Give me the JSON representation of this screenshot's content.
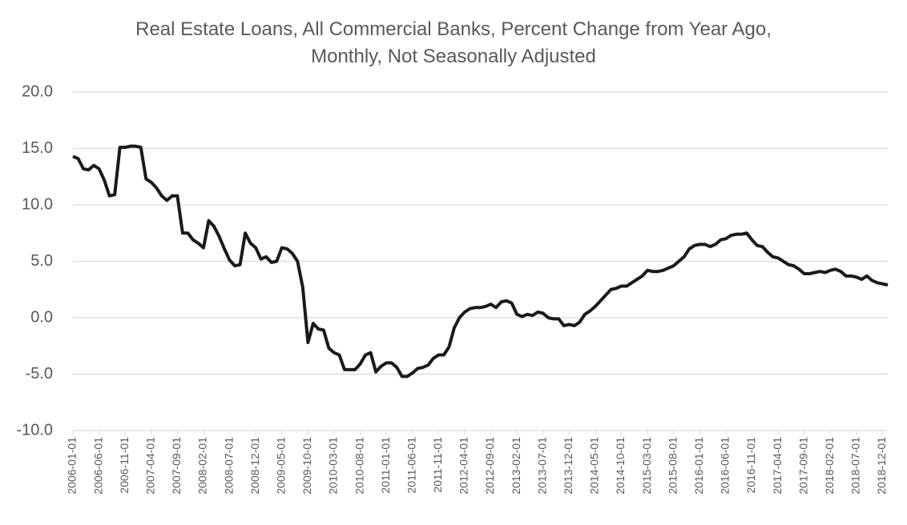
{
  "chart_data": {
    "type": "line",
    "title": [
      "Real Estate Loans, All Commercial Banks, Percent Change from Year Ago,",
      "Monthly, Not Seasonally Adjusted"
    ],
    "categories": [
      "2006-01-01",
      null,
      null,
      null,
      null,
      "2006-06-01",
      null,
      null,
      null,
      null,
      "2006-11-01",
      null,
      null,
      null,
      null,
      "2007-04-01",
      null,
      null,
      null,
      null,
      "2007-09-01",
      null,
      null,
      null,
      null,
      "2008-02-01",
      null,
      null,
      null,
      null,
      "2008-07-01",
      null,
      null,
      null,
      null,
      "2008-12-01",
      null,
      null,
      null,
      null,
      "2009-05-01",
      null,
      null,
      null,
      null,
      "2009-10-01",
      null,
      null,
      null,
      null,
      "2010-03-01",
      null,
      null,
      null,
      null,
      "2010-08-01",
      null,
      null,
      null,
      null,
      "2011-01-01",
      null,
      null,
      null,
      null,
      "2011-06-01",
      null,
      null,
      null,
      null,
      "2011-11-01",
      null,
      null,
      null,
      null,
      "2012-04-01",
      null,
      null,
      null,
      null,
      "2012-09-01",
      null,
      null,
      null,
      null,
      "2013-02-01",
      null,
      null,
      null,
      null,
      "2013-07-01",
      null,
      null,
      null,
      null,
      "2013-12-01",
      null,
      null,
      null,
      null,
      "2014-05-01",
      null,
      null,
      null,
      null,
      "2014-10-01",
      null,
      null,
      null,
      null,
      "2015-03-01",
      null,
      null,
      null,
      null,
      "2015-08-01",
      null,
      null,
      null,
      null,
      "2016-01-01",
      null,
      null,
      null,
      null,
      "2016-06-01",
      null,
      null,
      null,
      null,
      "2016-11-01",
      null,
      null,
      null,
      null,
      "2017-04-01",
      null,
      null,
      null,
      null,
      "2017-09-01",
      null,
      null,
      null,
      null,
      "2018-02-01",
      null,
      null,
      null,
      null,
      "2018-07-01",
      null,
      null,
      null,
      null,
      "2018-12-01",
      null
    ],
    "values": [
      14.3,
      14.1,
      13.2,
      13.1,
      13.5,
      13.2,
      12.2,
      10.8,
      10.9,
      15.1,
      15.1,
      15.2,
      15.2,
      15.1,
      12.3,
      12.0,
      11.5,
      10.8,
      10.4,
      10.8,
      10.8,
      7.5,
      7.5,
      6.9,
      6.6,
      6.2,
      8.6,
      8.1,
      7.2,
      6.1,
      5.1,
      4.6,
      4.7,
      7.5,
      6.6,
      6.2,
      5.2,
      5.4,
      4.9,
      5.0,
      6.2,
      6.1,
      5.7,
      5.0,
      2.7,
      -2.2,
      -0.5,
      -1.0,
      -1.1,
      -2.7,
      -3.1,
      -3.3,
      -4.6,
      -4.6,
      -4.6,
      -4.1,
      -3.3,
      -3.1,
      -4.8,
      -4.3,
      -4.0,
      -4.0,
      -4.4,
      -5.2,
      -5.2,
      -4.9,
      -4.5,
      -4.4,
      -4.2,
      -3.6,
      -3.3,
      -3.3,
      -2.6,
      -0.9,
      0.0,
      0.5,
      0.8,
      0.9,
      0.9,
      1.0,
      1.2,
      0.9,
      1.4,
      1.5,
      1.3,
      0.3,
      0.1,
      0.3,
      0.2,
      0.5,
      0.4,
      0.0,
      -0.1,
      -0.1,
      -0.7,
      -0.6,
      -0.7,
      -0.4,
      0.3,
      0.6,
      1.0,
      1.5,
      2.0,
      2.5,
      2.6,
      2.8,
      2.8,
      3.1,
      3.4,
      3.7,
      4.2,
      4.1,
      4.1,
      4.2,
      4.4,
      4.6,
      5.0,
      5.4,
      6.1,
      6.4,
      6.5,
      6.5,
      6.3,
      6.5,
      6.9,
      7.0,
      7.3,
      7.4,
      7.4,
      7.5,
      6.9,
      6.4,
      6.3,
      5.8,
      5.4,
      5.3,
      5.0,
      4.7,
      4.6,
      4.3,
      3.9,
      3.9,
      4.0,
      4.1,
      4.0,
      4.2,
      4.3,
      4.1,
      3.7,
      3.7,
      3.6,
      3.4,
      3.7,
      3.3,
      3.1,
      3.0,
      2.9
    ],
    "color": "#1a1a1a",
    "ylim": [
      -10,
      20
    ],
    "yticks": [
      {
        "value": -10,
        "label": "-10.0"
      },
      {
        "value": -5,
        "label": "-5.0"
      },
      {
        "value": 0,
        "label": "0.0"
      },
      {
        "value": 5,
        "label": "5.0"
      },
      {
        "value": 10,
        "label": "10.0"
      },
      {
        "value": 15,
        "label": "15.0"
      },
      {
        "value": 20,
        "label": "20.0"
      }
    ],
    "grid": true
  }
}
